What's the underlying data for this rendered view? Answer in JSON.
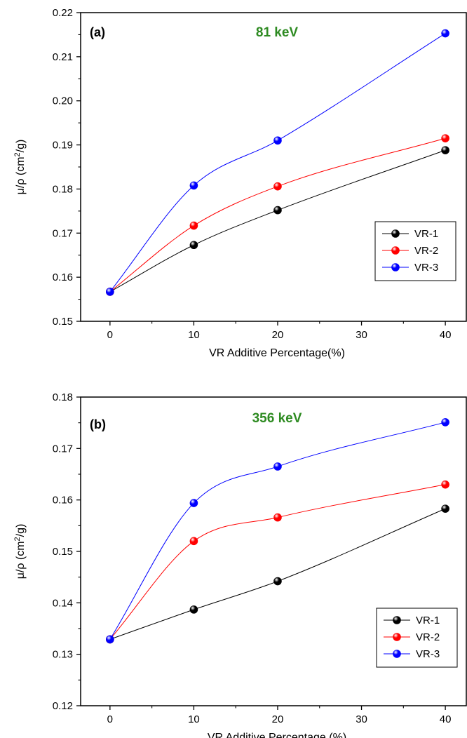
{
  "chart_data": [
    {
      "type": "line",
      "panel_label": "(a)",
      "annotation": "81 keV",
      "annotation_color": "#2e8b22",
      "xlabel": "VR Additive Percentage(%)",
      "ylabel_main": "μ/ρ (cm",
      "ylabel_sup": "2",
      "ylabel_end": "/g)",
      "xlim": [
        -3.5,
        42.5
      ],
      "ylim": [
        0.15,
        0.22
      ],
      "xticks": [
        0,
        10,
        20,
        30,
        40
      ],
      "yticks": [
        0.15,
        0.16,
        0.17,
        0.18,
        0.19,
        0.2,
        0.21,
        0.22
      ],
      "ytick_labels": [
        "0.15",
        "0.16",
        "0.17",
        "0.18",
        "0.19",
        "0.20",
        "0.21",
        "0.22"
      ],
      "x": [
        0,
        10,
        20,
        40
      ],
      "legend_position": "bottom-right",
      "series": [
        {
          "name": "VR-1",
          "color": "#000000",
          "values": [
            0.1567,
            0.1673,
            0.1752,
            0.1888
          ]
        },
        {
          "name": "VR-2",
          "color": "#ff0000",
          "values": [
            0.1567,
            0.1717,
            0.1806,
            0.1915
          ]
        },
        {
          "name": "VR-3",
          "color": "#0000ff",
          "values": [
            0.1567,
            0.1808,
            0.191,
            0.2153
          ]
        }
      ]
    },
    {
      "type": "line",
      "panel_label": "(b)",
      "annotation": "356 keV",
      "annotation_color": "#2e8b22",
      "xlabel": "VR Additive Percentage (%)",
      "ylabel_main": "μ/ρ (cm",
      "ylabel_sup": "2",
      "ylabel_end": "/g)",
      "xlim": [
        -3.5,
        42.5
      ],
      "ylim": [
        0.12,
        0.18
      ],
      "xticks": [
        0,
        10,
        20,
        30,
        40
      ],
      "yticks": [
        0.12,
        0.13,
        0.14,
        0.15,
        0.16,
        0.17,
        0.18
      ],
      "ytick_labels": [
        "0.12",
        "0.13",
        "0.14",
        "0.15",
        "0.16",
        "0.17",
        "0.18"
      ],
      "x": [
        0,
        10,
        20,
        40
      ],
      "legend_position": "bottom-right",
      "series": [
        {
          "name": "VR-1",
          "color": "#000000",
          "values": [
            0.1329,
            0.1387,
            0.1442,
            0.1583
          ]
        },
        {
          "name": "VR-2",
          "color": "#ff0000",
          "values": [
            0.1329,
            0.152,
            0.1566,
            0.163
          ]
        },
        {
          "name": "VR-3",
          "color": "#0000ff",
          "values": [
            0.1329,
            0.1594,
            0.1665,
            0.1751
          ]
        }
      ]
    }
  ]
}
